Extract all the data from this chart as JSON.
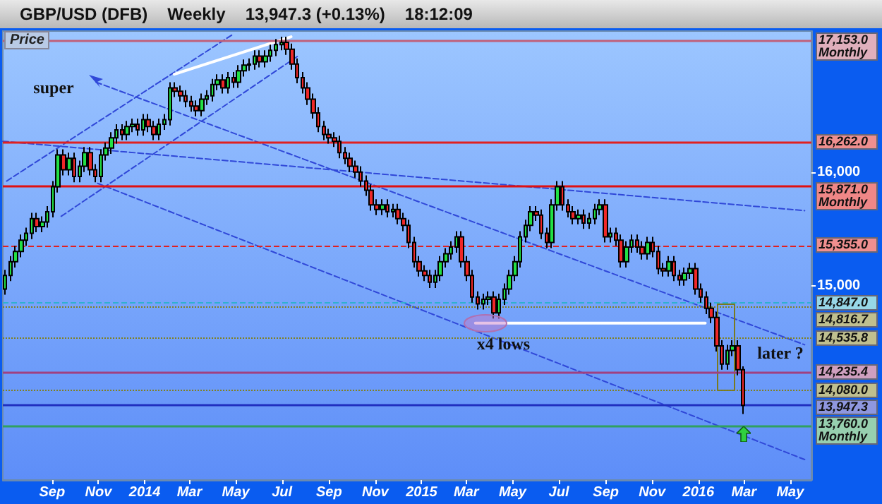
{
  "chart_data": {
    "type": "candlestick",
    "title": "GBP/USD (DFB)",
    "ylabel": "Price",
    "annotations": [
      "Weekly",
      "13,947.3 (+0.13%)",
      "18:12:09",
      "super",
      "later ?",
      {
        "text": "x4 lows",
        "x": "2015-04-19",
        "y": 14490
      }
    ],
    "x": [
      "2013-07-01",
      "2013-07-08",
      "2013-07-15",
      "2013-07-22",
      "2013-07-29",
      "2013-08-05",
      "2013-08-12",
      "2013-08-19",
      "2013-08-26",
      "2013-09-02",
      "2013-09-09",
      "2013-09-16",
      "2013-09-23",
      "2013-09-30",
      "2013-10-07",
      "2013-10-14",
      "2013-10-21",
      "2013-10-28",
      "2013-11-04",
      "2013-11-11",
      "2013-11-18",
      "2013-11-25",
      "2013-12-02",
      "2013-12-09",
      "2013-12-16",
      "2013-12-23",
      "2013-12-30",
      "2014-01-06",
      "2014-01-13",
      "2014-01-20",
      "2014-01-27",
      "2014-02-03",
      "2014-02-10",
      "2014-02-17",
      "2014-02-24",
      "2014-03-03",
      "2014-03-10",
      "2014-03-17",
      "2014-03-24",
      "2014-03-31",
      "2014-04-07",
      "2014-04-14",
      "2014-04-21",
      "2014-04-28",
      "2014-05-05",
      "2014-05-12",
      "2014-05-19",
      "2014-05-26",
      "2014-06-02",
      "2014-06-09",
      "2014-06-16",
      "2014-06-23",
      "2014-06-30",
      "2014-07-07",
      "2014-07-14",
      "2014-07-21",
      "2014-07-28",
      "2014-08-04",
      "2014-08-11",
      "2014-08-18",
      "2014-08-25",
      "2014-09-01",
      "2014-09-08",
      "2014-09-15",
      "2014-09-22",
      "2014-09-29",
      "2014-10-06",
      "2014-10-13",
      "2014-10-20",
      "2014-10-27",
      "2014-11-03",
      "2014-11-10",
      "2014-11-17",
      "2014-11-24",
      "2014-12-01",
      "2014-12-08",
      "2014-12-15",
      "2014-12-22",
      "2014-12-29",
      "2015-01-05",
      "2015-01-12",
      "2015-01-19",
      "2015-01-26",
      "2015-02-02",
      "2015-02-09",
      "2015-02-16",
      "2015-02-23",
      "2015-03-02",
      "2015-03-09",
      "2015-03-16",
      "2015-03-23",
      "2015-03-30",
      "2015-04-06",
      "2015-04-13",
      "2015-04-20",
      "2015-04-27",
      "2015-05-04",
      "2015-05-11",
      "2015-05-18",
      "2015-05-25",
      "2015-06-01",
      "2015-06-08",
      "2015-06-15",
      "2015-06-22",
      "2015-06-29",
      "2015-07-06",
      "2015-07-13",
      "2015-07-20",
      "2015-07-27",
      "2015-08-03",
      "2015-08-10",
      "2015-08-17",
      "2015-08-24",
      "2015-08-31",
      "2015-09-07",
      "2015-09-14",
      "2015-09-21",
      "2015-09-28",
      "2015-10-05",
      "2015-10-12",
      "2015-10-19",
      "2015-10-26",
      "2015-11-02",
      "2015-11-09",
      "2015-11-16",
      "2015-11-23",
      "2015-11-30",
      "2015-12-07",
      "2015-12-14",
      "2015-12-21",
      "2015-12-28",
      "2016-01-04",
      "2016-01-11",
      "2016-01-18",
      "2016-01-25",
      "2016-02-01",
      "2016-02-08",
      "2016-02-15",
      "2016-02-22",
      "2016-02-29"
    ],
    "ohlc": [
      [
        14970,
        15140,
        14920,
        15090
      ],
      [
        15090,
        15260,
        15040,
        15210
      ],
      [
        15210,
        15350,
        15160,
        15300
      ],
      [
        15300,
        15450,
        15250,
        15400
      ],
      [
        15400,
        15510,
        15350,
        15460
      ],
      [
        15460,
        15640,
        15410,
        15590
      ],
      [
        15590,
        15640,
        15470,
        15520
      ],
      [
        15520,
        15610,
        15470,
        15560
      ],
      [
        15560,
        15700,
        15510,
        15650
      ],
      [
        15650,
        15920,
        15600,
        15870
      ],
      [
        15870,
        16200,
        15820,
        16150
      ],
      [
        16150,
        16200,
        15970,
        16020
      ],
      [
        16020,
        16170,
        15970,
        16120
      ],
      [
        16120,
        16170,
        15910,
        15960
      ],
      [
        15960,
        16100,
        15910,
        16050
      ],
      [
        16050,
        16220,
        16000,
        16170
      ],
      [
        16170,
        16220,
        15970,
        16020
      ],
      [
        16020,
        16070,
        15910,
        15960
      ],
      [
        15960,
        16200,
        15910,
        16150
      ],
      [
        16150,
        16260,
        16100,
        16210
      ],
      [
        16210,
        16350,
        16160,
        16300
      ],
      [
        16300,
        16420,
        16250,
        16370
      ],
      [
        16370,
        16420,
        16280,
        16330
      ],
      [
        16330,
        16450,
        16280,
        16400
      ],
      [
        16400,
        16470,
        16350,
        16420
      ],
      [
        16420,
        16470,
        16320,
        16370
      ],
      [
        16370,
        16510,
        16320,
        16460
      ],
      [
        16460,
        16510,
        16350,
        16400
      ],
      [
        16400,
        16450,
        16280,
        16330
      ],
      [
        16330,
        16470,
        16280,
        16420
      ],
      [
        16420,
        16510,
        16370,
        16460
      ],
      [
        16460,
        16790,
        16410,
        16740
      ],
      [
        16740,
        16790,
        16660,
        16710
      ],
      [
        16710,
        16760,
        16620,
        16670
      ],
      [
        16670,
        16720,
        16570,
        16620
      ],
      [
        16620,
        16670,
        16530,
        16580
      ],
      [
        16580,
        16630,
        16490,
        16540
      ],
      [
        16540,
        16690,
        16490,
        16640
      ],
      [
        16640,
        16720,
        16590,
        16670
      ],
      [
        16670,
        16820,
        16620,
        16770
      ],
      [
        16770,
        16860,
        16720,
        16810
      ],
      [
        16810,
        16860,
        16690,
        16740
      ],
      [
        16740,
        16880,
        16690,
        16830
      ],
      [
        16830,
        16880,
        16740,
        16790
      ],
      [
        16790,
        16940,
        16740,
        16890
      ],
      [
        16890,
        16990,
        16840,
        16940
      ],
      [
        16940,
        17000,
        16890,
        16950
      ],
      [
        16950,
        17070,
        16900,
        17020
      ],
      [
        17020,
        17070,
        16920,
        16970
      ],
      [
        16970,
        17070,
        16920,
        17020
      ],
      [
        17020,
        17120,
        16970,
        17070
      ],
      [
        17070,
        17170,
        17020,
        17120
      ],
      [
        17120,
        17190,
        17070,
        17140
      ],
      [
        17140,
        17190,
        17030,
        17080
      ],
      [
        17080,
        17130,
        16900,
        16950
      ],
      [
        16950,
        17000,
        16780,
        16830
      ],
      [
        16830,
        16880,
        16690,
        16740
      ],
      [
        16740,
        16790,
        16590,
        16640
      ],
      [
        16640,
        16690,
        16470,
        16520
      ],
      [
        16520,
        16570,
        16350,
        16400
      ],
      [
        16400,
        16450,
        16280,
        16330
      ],
      [
        16330,
        16380,
        16250,
        16300
      ],
      [
        16300,
        16350,
        16220,
        16270
      ],
      [
        16270,
        16320,
        16120,
        16170
      ],
      [
        16170,
        16220,
        16070,
        16120
      ],
      [
        16120,
        16170,
        16000,
        16050
      ],
      [
        16050,
        16100,
        15950,
        16000
      ],
      [
        16000,
        16050,
        15870,
        15920
      ],
      [
        15920,
        15970,
        15790,
        15840
      ],
      [
        15840,
        15890,
        15660,
        15710
      ],
      [
        15710,
        15760,
        15620,
        15670
      ],
      [
        15670,
        15760,
        15620,
        15710
      ],
      [
        15710,
        15760,
        15600,
        15650
      ],
      [
        15650,
        15720,
        15600,
        15670
      ],
      [
        15670,
        15720,
        15540,
        15590
      ],
      [
        15590,
        15640,
        15480,
        15530
      ],
      [
        15530,
        15580,
        15330,
        15380
      ],
      [
        15380,
        15430,
        15160,
        15210
      ],
      [
        15210,
        15260,
        15080,
        15130
      ],
      [
        15130,
        15180,
        15040,
        15090
      ],
      [
        15090,
        15140,
        14980,
        15030
      ],
      [
        15030,
        15140,
        14980,
        15090
      ],
      [
        15090,
        15260,
        15040,
        15210
      ],
      [
        15210,
        15330,
        15160,
        15280
      ],
      [
        15280,
        15390,
        15230,
        15340
      ],
      [
        15340,
        15480,
        15290,
        15430
      ],
      [
        15430,
        15480,
        15160,
        15210
      ],
      [
        15210,
        15260,
        15040,
        15090
      ],
      [
        15090,
        15140,
        14850,
        14900
      ],
      [
        14900,
        14950,
        14790,
        14840
      ],
      [
        14840,
        14930,
        14790,
        14880
      ],
      [
        14880,
        14950,
        14830,
        14900
      ],
      [
        14900,
        14950,
        14710,
        14760
      ],
      [
        14760,
        14930,
        14710,
        14880
      ],
      [
        14880,
        15020,
        14830,
        14970
      ],
      [
        14970,
        15140,
        14920,
        15090
      ],
      [
        15090,
        15260,
        15040,
        15210
      ],
      [
        15210,
        15480,
        15160,
        15430
      ],
      [
        15430,
        15580,
        15380,
        15530
      ],
      [
        15530,
        15700,
        15480,
        15650
      ],
      [
        15650,
        15700,
        15570,
        15620
      ],
      [
        15620,
        15670,
        15410,
        15460
      ],
      [
        15460,
        15510,
        15330,
        15380
      ],
      [
        15380,
        15760,
        15330,
        15710
      ],
      [
        15710,
        15920,
        15660,
        15870
      ],
      [
        15870,
        15920,
        15660,
        15710
      ],
      [
        15710,
        15760,
        15600,
        15650
      ],
      [
        15650,
        15700,
        15540,
        15590
      ],
      [
        15590,
        15670,
        15540,
        15620
      ],
      [
        15620,
        15670,
        15500,
        15550
      ],
      [
        15550,
        15640,
        15500,
        15590
      ],
      [
        15590,
        15720,
        15540,
        15670
      ],
      [
        15670,
        15760,
        15620,
        15710
      ],
      [
        15710,
        15760,
        15380,
        15430
      ],
      [
        15430,
        15510,
        15380,
        15460
      ],
      [
        15460,
        15510,
        15350,
        15400
      ],
      [
        15400,
        15450,
        15160,
        15210
      ],
      [
        15210,
        15390,
        15160,
        15340
      ],
      [
        15340,
        15450,
        15290,
        15400
      ],
      [
        15400,
        15450,
        15290,
        15340
      ],
      [
        15340,
        15390,
        15230,
        15280
      ],
      [
        15280,
        15430,
        15230,
        15380
      ],
      [
        15380,
        15430,
        15250,
        15300
      ],
      [
        15300,
        15350,
        15100,
        15150
      ],
      [
        15150,
        15200,
        15080,
        15130
      ],
      [
        15130,
        15260,
        15080,
        15210
      ],
      [
        15210,
        15260,
        15040,
        15090
      ],
      [
        15090,
        15140,
        15000,
        15050
      ],
      [
        15050,
        15160,
        15000,
        15110
      ],
      [
        15110,
        15200,
        15060,
        15150
      ],
      [
        15150,
        15200,
        14920,
        14970
      ],
      [
        14970,
        15020,
        14850,
        14900
      ],
      [
        14900,
        14950,
        14750,
        14800
      ],
      [
        14800,
        14850,
        14670,
        14720
      ],
      [
        14720,
        14770,
        14420,
        14470
      ],
      [
        14470,
        14520,
        14260,
        14310
      ],
      [
        14310,
        14480,
        14260,
        14430
      ],
      [
        14430,
        14520,
        14380,
        14470
      ],
      [
        14470,
        14520,
        14210,
        14260
      ],
      [
        14260,
        14290,
        13870,
        13947.3
      ]
    ],
    "series": [
      {
        "type": "line",
        "x": [
          "2013-07-03",
          "2014-04-27"
        ],
        "values": [
          15920,
          17210
        ],
        "color": "#3048d8",
        "line_style": "dashed"
      },
      {
        "type": "line",
        "x": [
          "2013-09-13",
          "2014-07-22"
        ],
        "values": [
          15610,
          17020
        ],
        "color": "#3048d8",
        "line_style": "dashed"
      },
      {
        "type": "line",
        "x": [
          "2013-06-28",
          "2016-05-20"
        ],
        "values": [
          16270,
          15660
        ],
        "color": "#3048d8",
        "line_style": "dashed"
      },
      {
        "type": "line",
        "x": [
          "2013-10-29",
          "2016-05-20"
        ],
        "values": [
          16790,
          14480
        ],
        "color": "#3048d8",
        "line_style": "dashed"
      },
      {
        "type": "line",
        "x": [
          "2013-10-31",
          "2016-05-20"
        ],
        "values": [
          15900,
          13470
        ],
        "color": "#3048d8",
        "line_style": "dashed"
      },
      {
        "type": "line",
        "x": [
          "2014-02-09",
          "2014-07-13"
        ],
        "values": [
          16860,
          17190
        ],
        "color": "#ffffff",
        "line_style": "solid"
      },
      {
        "type": "line",
        "x": [
          "2015-03-13",
          "2016-01-10"
        ],
        "values": [
          14670,
          14670
        ],
        "color": "#ffffff",
        "line_style": "solid"
      }
    ],
    "ref_lines": [
      {
        "axis": "y",
        "value": 17153,
        "label": "17,153.0 Monthly",
        "color": "#c0607a",
        "line_style": "solid"
      },
      {
        "axis": "y",
        "value": 16262,
        "label": "16,262.0",
        "color": "#e02020",
        "line_style": "solid"
      },
      {
        "axis": "y",
        "value": 15871,
        "label": "15,871.0 Monthly",
        "color": "#e01010",
        "line_style": "solid"
      },
      {
        "axis": "y",
        "value": 15355,
        "label": "15,355.0",
        "color": "#e02020",
        "line_style": "dashed"
      },
      {
        "axis": "y",
        "value": 14847,
        "label": "14,847.0",
        "color": "#30b0d0",
        "line_style": "dashed"
      },
      {
        "axis": "y",
        "value": 14816.7,
        "label": "14,816.7",
        "color": "#808020",
        "line_style": "dotted"
      },
      {
        "axis": "y",
        "value": 14535.8,
        "label": "14,535.8",
        "color": "#808020",
        "line_style": "dotted"
      },
      {
        "axis": "y",
        "value": 14235.4,
        "label": "14,235.4",
        "color": "#a04080",
        "line_style": "solid"
      },
      {
        "axis": "y",
        "value": 14080,
        "label": "14,080.0",
        "color": "#808020",
        "line_style": "dotted"
      },
      {
        "axis": "y",
        "value": 13947.3,
        "label": "13,947.3",
        "color": "#2030c0",
        "line_style": "solid"
      },
      {
        "axis": "y",
        "value": 13760,
        "label": "13,760.0 Monthly",
        "color": "#30a060",
        "line_style": "solid"
      }
    ],
    "xlim": [
      "2013-06-28",
      "2016-05-29"
    ],
    "xticks": [
      {
        "value": "2013-09-01",
        "label": "Sep"
      },
      {
        "value": "2013-11-01",
        "label": "Nov"
      },
      {
        "value": "2014-01-01",
        "label": "2014"
      },
      {
        "value": "2014-03-01",
        "label": "Mar"
      },
      {
        "value": "2014-05-01",
        "label": "May"
      },
      {
        "value": "2014-07-01",
        "label": "Jul"
      },
      {
        "value": "2014-09-01",
        "label": "Sep"
      },
      {
        "value": "2014-11-01",
        "label": "Nov"
      },
      {
        "value": "2015-01-01",
        "label": "2015"
      },
      {
        "value": "2015-03-01",
        "label": "Mar"
      },
      {
        "value": "2015-05-01",
        "label": "May"
      },
      {
        "value": "2015-07-01",
        "label": "Jul"
      },
      {
        "value": "2015-09-01",
        "label": "Sep"
      },
      {
        "value": "2015-11-01",
        "label": "Nov"
      },
      {
        "value": "2016-01-01",
        "label": "2016"
      },
      {
        "value": "2016-03-01",
        "label": "Mar"
      },
      {
        "value": "2016-05-01",
        "label": "May"
      }
    ],
    "ylim": [
      13290,
      17240
    ],
    "yticks": [
      {
        "value": 15000,
        "label": "15,000"
      },
      {
        "value": 16000,
        "label": "16,000"
      }
    ]
  }
}
